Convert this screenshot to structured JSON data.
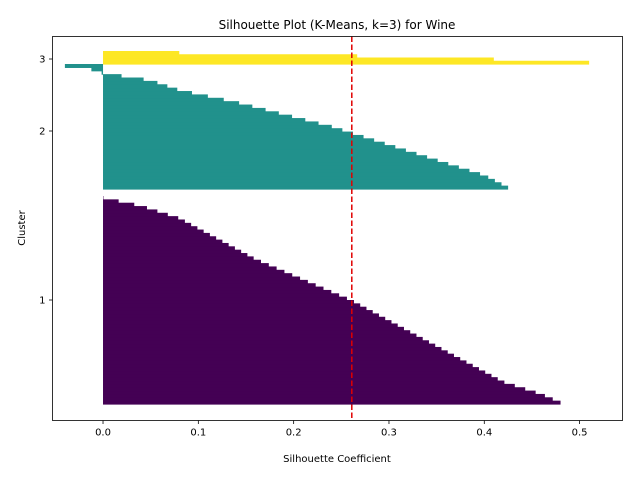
{
  "chart_data": {
    "type": "silhouette",
    "title": "Silhouette Plot (K-Means, k=3) for Wine",
    "xlabel": "Silhouette Coefficient",
    "ylabel": "Cluster",
    "xlim": [
      -0.053,
      0.545
    ],
    "xticks": [
      0.0,
      0.1,
      0.2,
      0.3,
      0.4,
      0.5
    ],
    "xtick_labels": [
      "0.0",
      "0.1",
      "0.2",
      "0.3",
      "0.4",
      "0.5"
    ],
    "average_silhouette": 0.261,
    "average_line_color": "#e00000",
    "clusters": [
      {
        "label": "1",
        "color": "#440154",
        "samples": 62,
        "profile": [
          [
            0.0,
            0.48
          ],
          [
            0.04,
            0.46
          ],
          [
            0.1,
            0.42
          ],
          [
            0.2,
            0.38
          ],
          [
            0.3,
            0.34
          ],
          [
            0.4,
            0.3
          ],
          [
            0.5,
            0.26
          ],
          [
            0.6,
            0.21
          ],
          [
            0.7,
            0.16
          ],
          [
            0.8,
            0.12
          ],
          [
            0.9,
            0.08
          ],
          [
            0.96,
            0.04
          ],
          [
            1.0,
            0.0
          ]
        ]
      },
      {
        "label": "2",
        "color": "#21918c",
        "samples": 37,
        "profile": [
          [
            0.0,
            0.425
          ],
          [
            0.1,
            0.4
          ],
          [
            0.2,
            0.36
          ],
          [
            0.3,
            0.32
          ],
          [
            0.4,
            0.28
          ],
          [
            0.5,
            0.24
          ],
          [
            0.6,
            0.19
          ],
          [
            0.7,
            0.14
          ],
          [
            0.8,
            0.08
          ],
          [
            0.88,
            0.05
          ],
          [
            0.94,
            0.0
          ],
          [
            0.97,
            -0.01
          ],
          [
            1.0,
            -0.04
          ]
        ]
      },
      {
        "label": "3",
        "color": "#fde725",
        "samples": 4,
        "profile": [
          [
            0.0,
            0.51
          ],
          [
            0.5,
            0.36
          ],
          [
            1.0,
            0.08
          ]
        ]
      }
    ]
  }
}
